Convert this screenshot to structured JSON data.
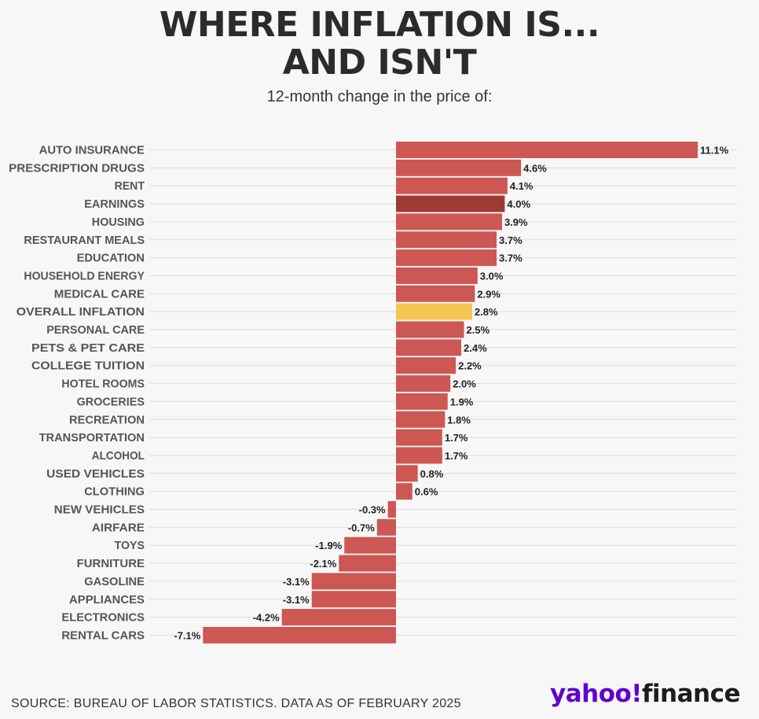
{
  "title_line1": "WHERE INFLATION IS...",
  "title_line2": "AND ISN'T",
  "subtitle": "12-month change in the price of:",
  "source": "SOURCE: BUREAU OF LABOR STATISTICS. DATA AS OF FEBRUARY 2025",
  "logo": {
    "yahoo": "yahoo!",
    "finance": "finance"
  },
  "colors": {
    "default": "#cd5752",
    "earnings": "#9e3a35",
    "overall": "#f4c755",
    "grid": "#dcdcde"
  },
  "chart_data": {
    "type": "bar",
    "orientation": "horizontal",
    "title": "WHERE INFLATION IS... AND ISN'T",
    "subtitle": "12-month change in the price of:",
    "xlabel": "",
    "ylabel": "",
    "xlim": [
      -7.1,
      11.1
    ],
    "grid": true,
    "categories": [
      "AUTO INSURANCE",
      "PRESCRIPTION DRUGS",
      "RENT",
      "EARNINGS",
      "HOUSING",
      "RESTAURANT MEALS",
      "EDUCATION",
      "HOUSEHOLD ENERGY",
      "MEDICAL CARE",
      "OVERALL INFLATION",
      "PERSONAL CARE",
      "PETS & PET CARE",
      "COLLEGE TUITION",
      "HOTEL ROOMS",
      "GROCERIES",
      "RECREATION",
      "TRANSPORTATION",
      "ALCOHOL",
      "USED VEHICLES",
      "CLOTHING",
      "NEW VEHICLES",
      "AIRFARE",
      "TOYS",
      "FURNITURE",
      "GASOLINE",
      "APPLIANCES",
      "ELECTRONICS",
      "RENTAL CARS"
    ],
    "values": [
      11.1,
      4.6,
      4.1,
      4.0,
      3.9,
      3.7,
      3.7,
      3.0,
      2.9,
      2.8,
      2.5,
      2.4,
      2.2,
      2.0,
      1.9,
      1.8,
      1.7,
      1.7,
      0.8,
      0.6,
      -0.3,
      -0.7,
      -1.9,
      -2.1,
      -3.1,
      -3.1,
      -4.2,
      -7.1
    ],
    "labels": [
      "11.1%",
      "4.6%",
      "4.1%",
      "4.0%",
      "3.9%",
      "3.7%",
      "3.7%",
      "3.0%",
      "2.9%",
      "2.8%",
      "2.5%",
      "2.4%",
      "2.2%",
      "2.0%",
      "1.9%",
      "1.8%",
      "1.7%",
      "1.7%",
      "0.8%",
      "0.6%",
      "-0.3%",
      "-0.7%",
      "-1.9%",
      "-2.1%",
      "-3.1%",
      "-3.1%",
      "-4.2%",
      "-7.1%"
    ],
    "highlights": {
      "EARNINGS": "earnings",
      "OVERALL INFLATION": "overall"
    }
  }
}
